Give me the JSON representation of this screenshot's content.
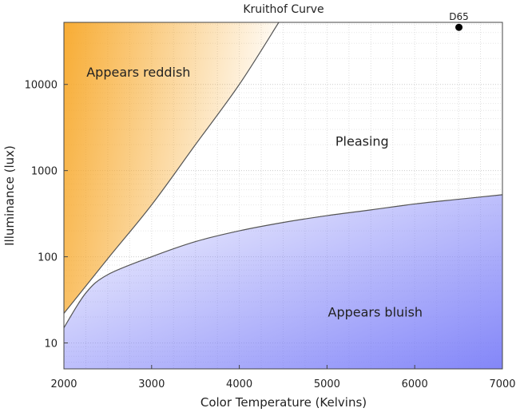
{
  "chart_data": {
    "type": "area",
    "title": "Kruithof Curve",
    "xlabel": "Color Temperature (Kelvins)",
    "ylabel": "Illuminance (lux)",
    "xlim": [
      2000,
      7000
    ],
    "ylim": [
      5,
      52500
    ],
    "yscale": "log",
    "grid": true,
    "xticks": [
      "2000",
      "3000",
      "4000",
      "5000",
      "6000",
      "7000"
    ],
    "xtick_values": [
      2000,
      3000,
      4000,
      5000,
      6000,
      7000
    ],
    "yticks": [
      "10",
      "100",
      "1000",
      "10000"
    ],
    "ytick_values": [
      10,
      100,
      1000,
      10000
    ],
    "series": [
      {
        "name": "Upper boundary",
        "x": [
          2000,
          2500,
          3000,
          3500,
          4000,
          4450
        ],
        "y": [
          22,
          95,
          400,
          2000,
          10000,
          52500
        ]
      },
      {
        "name": "Lower boundary",
        "x": [
          2000,
          2250,
          2500,
          3000,
          3500,
          4000,
          4500,
          5000,
          5500,
          6000,
          6500,
          7000
        ],
        "y": [
          15,
          38,
          62,
          100,
          150,
          200,
          250,
          300,
          350,
          410,
          465,
          525
        ]
      }
    ],
    "points": [
      {
        "label": "D65",
        "x": 6504,
        "y": 46000
      }
    ],
    "annotations": [
      {
        "text": "Appears reddish",
        "x": 2850,
        "y": 14000
      },
      {
        "text": "Pleasing",
        "x": 5400,
        "y": 2200
      },
      {
        "text": "Appears bluish",
        "x": 5550,
        "y": 23
      }
    ],
    "colors": {
      "reddish": "#f7a82a",
      "bluish": "#7d80f8",
      "curve": "#555555"
    }
  }
}
